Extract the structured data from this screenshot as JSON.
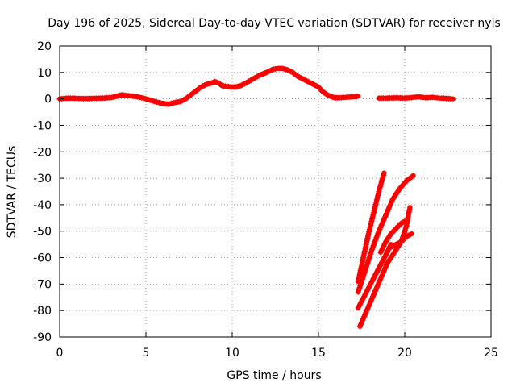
{
  "chart_data": {
    "type": "scatter",
    "title": "Day 196 of 2025, Sidereal Day-to-day VTEC variation (SDTVAR) for receiver nyls",
    "xlabel": "GPS time / hours",
    "ylabel": "SDTVAR / TECUs",
    "xlim": [
      0,
      25
    ],
    "ylim": [
      -90,
      20
    ],
    "x_ticks": [
      0,
      5,
      10,
      15,
      20,
      25
    ],
    "y_ticks": [
      -90,
      -80,
      -70,
      -60,
      -50,
      -40,
      -30,
      -20,
      -10,
      0,
      10,
      20
    ],
    "grid": true,
    "legend": "none",
    "marker": "plus",
    "series_color": "#ff0000",
    "segments": [
      [
        [
          0.0,
          0.0
        ],
        [
          0.5,
          0.3
        ],
        [
          1.0,
          0.2
        ],
        [
          1.5,
          0.1
        ],
        [
          2.0,
          0.2
        ],
        [
          2.5,
          0.3
        ],
        [
          3.0,
          0.5
        ],
        [
          3.3,
          1.0
        ],
        [
          3.6,
          1.5
        ],
        [
          4.0,
          1.2
        ],
        [
          4.5,
          0.8
        ],
        [
          5.0,
          0.0
        ],
        [
          5.5,
          -1.0
        ],
        [
          6.0,
          -1.8
        ],
        [
          6.3,
          -2.0
        ],
        [
          6.6,
          -1.5
        ],
        [
          7.0,
          -1.0
        ],
        [
          7.3,
          0.0
        ],
        [
          7.6,
          1.5
        ],
        [
          7.9,
          3.0
        ],
        [
          8.2,
          4.5
        ],
        [
          8.5,
          5.5
        ],
        [
          8.8,
          6.0
        ],
        [
          9.0,
          6.5
        ],
        [
          9.2,
          6.0
        ],
        [
          9.4,
          5.0
        ],
        [
          9.6,
          4.8
        ],
        [
          9.9,
          4.5
        ],
        [
          10.2,
          4.5
        ],
        [
          10.5,
          5.0
        ],
        [
          10.8,
          6.0
        ],
        [
          11.2,
          7.5
        ],
        [
          11.6,
          9.0
        ],
        [
          12.0,
          10.0
        ],
        [
          12.3,
          11.0
        ],
        [
          12.6,
          11.5
        ],
        [
          12.9,
          11.5
        ],
        [
          13.2,
          11.0
        ],
        [
          13.5,
          10.0
        ],
        [
          13.8,
          8.5
        ],
        [
          14.1,
          7.5
        ],
        [
          14.4,
          6.5
        ],
        [
          14.7,
          5.5
        ],
        [
          15.0,
          4.5
        ],
        [
          15.2,
          3.0
        ],
        [
          15.4,
          2.0
        ],
        [
          15.6,
          1.2
        ],
        [
          15.9,
          0.5
        ],
        [
          16.2,
          0.4
        ],
        [
          16.6,
          0.6
        ],
        [
          17.0,
          0.8
        ],
        [
          17.3,
          1.0
        ]
      ],
      [
        [
          18.5,
          0.3
        ],
        [
          19.0,
          0.3
        ],
        [
          19.5,
          0.4
        ],
        [
          20.0,
          0.3
        ],
        [
          20.4,
          0.5
        ],
        [
          20.8,
          0.8
        ],
        [
          21.2,
          0.4
        ],
        [
          21.6,
          0.6
        ],
        [
          22.0,
          0.3
        ],
        [
          22.4,
          0.2
        ],
        [
          22.8,
          0.0
        ]
      ],
      [
        [
          17.3,
          -69
        ],
        [
          17.6,
          -60
        ],
        [
          17.9,
          -51
        ],
        [
          18.2,
          -43
        ],
        [
          18.5,
          -35
        ],
        [
          18.8,
          -28
        ]
      ],
      [
        [
          17.3,
          -73
        ],
        [
          17.7,
          -65
        ],
        [
          18.1,
          -57
        ],
        [
          18.5,
          -50
        ],
        [
          18.9,
          -44
        ],
        [
          19.3,
          -38
        ],
        [
          19.7,
          -34
        ],
        [
          20.1,
          -31
        ],
        [
          20.5,
          -29
        ]
      ],
      [
        [
          17.4,
          -86
        ],
        [
          17.8,
          -80
        ],
        [
          18.2,
          -74
        ],
        [
          18.6,
          -68
        ],
        [
          19.0,
          -62
        ],
        [
          19.4,
          -58
        ],
        [
          19.8,
          -54
        ],
        [
          20.1,
          -48
        ],
        [
          20.3,
          -41
        ]
      ],
      [
        [
          17.3,
          -79
        ],
        [
          17.7,
          -74
        ],
        [
          18.1,
          -69
        ],
        [
          18.5,
          -64
        ],
        [
          18.9,
          -59
        ],
        [
          19.2,
          -55
        ]
      ],
      [
        [
          19.2,
          -56
        ],
        [
          19.5,
          -55
        ],
        [
          19.8,
          -54
        ],
        [
          20.1,
          -52
        ],
        [
          20.4,
          -51
        ]
      ],
      [
        [
          18.6,
          -58
        ],
        [
          18.9,
          -54
        ],
        [
          19.2,
          -51
        ],
        [
          19.5,
          -49
        ],
        [
          19.8,
          -47
        ],
        [
          20.1,
          -46
        ]
      ]
    ]
  }
}
